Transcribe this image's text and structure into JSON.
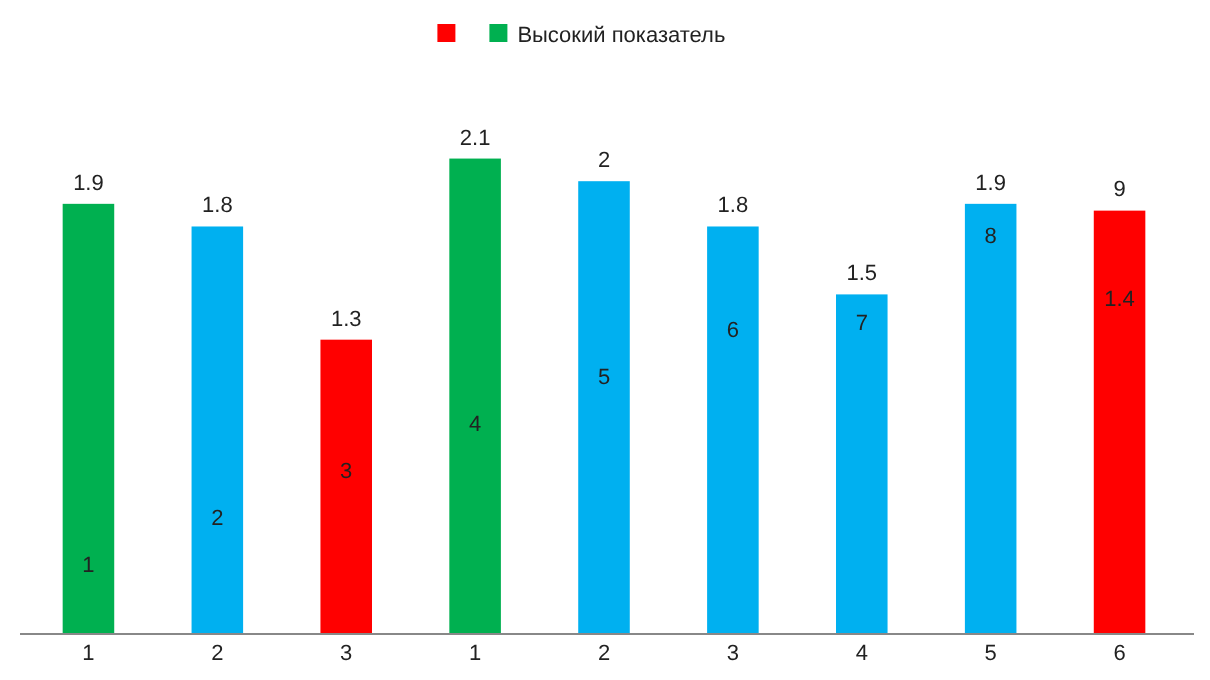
{
  "chart_data": {
    "type": "bar",
    "categories": [
      "1",
      "2",
      "3",
      "1",
      "2",
      "3",
      "4",
      "5",
      "6"
    ],
    "tick_labels": "x",
    "legend": "top",
    "series": [
      {
        "color": "#ff0000",
        "values": [
          null,
          null,
          1.3,
          null,
          null,
          null,
          null,
          null,
          1.87
        ],
        "value_labels": [
          null,
          null,
          "1.3",
          null,
          null,
          null,
          null,
          null,
          null
        ]
      },
      {
        "name": "Высокий показатель",
        "color": "#00b050",
        "values": [
          1.9,
          null,
          null,
          2.1,
          null,
          null,
          null,
          null,
          null
        ],
        "value_labels": [
          "1.9",
          null,
          null,
          "2.1",
          null,
          null,
          null,
          null,
          null
        ]
      },
      {
        "color": "#00b0f0",
        "values": [
          null,
          1.8,
          null,
          null,
          2,
          1.8,
          1.5,
          1.9,
          null
        ],
        "value_labels": [
          null,
          "1.8",
          null,
          null,
          "2",
          "1.8",
          "1.5",
          "1.9",
          null
        ]
      }
    ],
    "annotations": [
      "1",
      "2",
      "3",
      "4",
      "5",
      "6",
      "7",
      "8",
      "9",
      "1.4"
    ]
  }
}
